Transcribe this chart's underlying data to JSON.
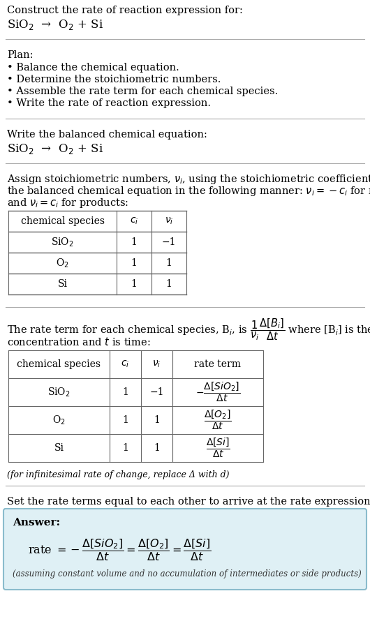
{
  "title_line1": "Construct the rate of reaction expression for:",
  "title_line2": "SiO$_2$  →  O$_2$ + Si",
  "plan_header": "Plan:",
  "plan_items": [
    "• Balance the chemical equation.",
    "• Determine the stoichiometric numbers.",
    "• Assemble the rate term for each chemical species.",
    "• Write the rate of reaction expression."
  ],
  "section2_header": "Write the balanced chemical equation:",
  "section2_eq": "SiO$_2$  →  O$_2$ + Si",
  "section3_line1": "Assign stoichiometric numbers, $\\nu_i$, using the stoichiometric coefficients, $c_i$, from",
  "section3_line2": "the balanced chemical equation in the following manner: $\\nu_i = -c_i$ for reactants",
  "section3_line3": "and $\\nu_i = c_i$ for products:",
  "table1_headers": [
    "chemical species",
    "$c_i$",
    "$\\nu_i$"
  ],
  "table1_rows": [
    [
      "SiO$_2$",
      "1",
      "−1"
    ],
    [
      "O$_2$",
      "1",
      "1"
    ],
    [
      "Si",
      "1",
      "1"
    ]
  ],
  "section4_line1": "The rate term for each chemical species, B$_i$, is $\\dfrac{1}{\\nu_i}\\dfrac{\\Delta[B_i]}{\\Delta t}$ where [B$_i$] is the amount",
  "section4_line2": "concentration and $t$ is time:",
  "table2_headers": [
    "chemical species",
    "$c_i$",
    "$\\nu_i$",
    "rate term"
  ],
  "table2_rows": [
    [
      "SiO$_2$",
      "1",
      "−1",
      "$-\\dfrac{\\Delta[SiO_2]}{\\Delta t}$"
    ],
    [
      "O$_2$",
      "1",
      "1",
      "$\\dfrac{\\Delta[O_2]}{\\Delta t}$"
    ],
    [
      "Si",
      "1",
      "1",
      "$\\dfrac{\\Delta[Si]}{\\Delta t}$"
    ]
  ],
  "infinitesimal_note": "(for infinitesimal rate of change, replace Δ with d)",
  "section5_header": "Set the rate terms equal to each other to arrive at the rate expression:",
  "answer_label": "Answer:",
  "answer_eq": "rate $= -\\dfrac{\\Delta[SiO_2]}{\\Delta t} = \\dfrac{\\Delta[O_2]}{\\Delta t} = \\dfrac{\\Delta[Si]}{\\Delta t}$",
  "answer_note": "(assuming constant volume and no accumulation of intermediates or side products)",
  "answer_bg_color": "#dff0f5",
  "answer_border_color": "#8bbccc",
  "divider_color": "#aaaaaa",
  "text_color": "#000000",
  "body_fontsize": 10.5,
  "fig_width": 5.3,
  "fig_height": 9.1
}
